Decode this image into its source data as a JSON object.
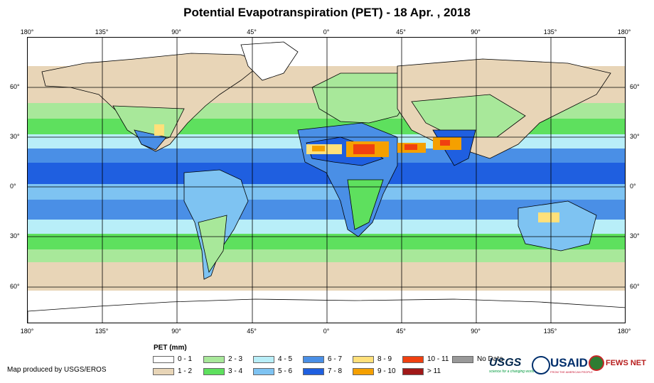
{
  "title": "Potential Evapotranspiration (PET) - 18 Apr. , 2018",
  "axes": {
    "lon_labels": [
      "180°",
      "135°",
      "90°",
      "45°",
      "0°",
      "45°",
      "90°",
      "135°",
      "180°"
    ],
    "lat_labels": [
      "60°",
      "30°",
      "0°",
      "30°",
      "60°"
    ]
  },
  "legend": {
    "title": "PET (mm)",
    "items": [
      {
        "label": "0 - 1",
        "color": "#ffffff"
      },
      {
        "label": "1 - 2",
        "color": "#e8d5b7"
      },
      {
        "label": "2 - 3",
        "color": "#a8e89a"
      },
      {
        "label": "3 - 4",
        "color": "#5ee05e"
      },
      {
        "label": "4 - 5",
        "color": "#b8eef8"
      },
      {
        "label": "5 - 6",
        "color": "#7ec3f2"
      },
      {
        "label": "6 - 7",
        "color": "#4a8fe6"
      },
      {
        "label": "7 - 8",
        "color": "#1f5fe0"
      },
      {
        "label": "8 - 9",
        "color": "#ffe07a"
      },
      {
        "label": "9 - 10",
        "color": "#f5a000"
      },
      {
        "label": "10 - 11",
        "color": "#f04010"
      },
      {
        "label": "> 11",
        "color": "#a01818"
      },
      {
        "label": "No Data",
        "color": "#999999"
      }
    ]
  },
  "credit": "Map produced by USGS/EROS",
  "logos": {
    "usgs": "USGS",
    "usgs_tagline": "science for a changing world",
    "usaid": "USAID",
    "usaid_tagline": "FROM THE AMERICAN PEOPLE",
    "fews": "FEWS NET"
  }
}
